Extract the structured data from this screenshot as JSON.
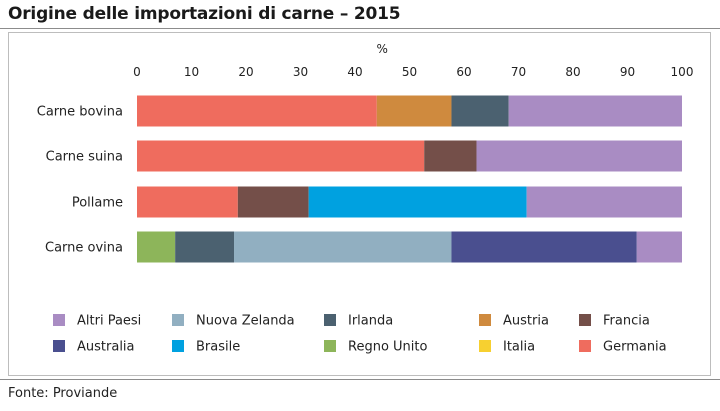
{
  "title": "Origine delle importazioni di carne – 2015",
  "source": "Fonte: Proviande",
  "chart_data": {
    "type": "bar",
    "orientation": "horizontal",
    "stacked": true,
    "unit_label": "%",
    "xlim": [
      0,
      100
    ],
    "xticks": [
      "0",
      "10",
      "20",
      "30",
      "40",
      "50",
      "60",
      "70",
      "80",
      "90",
      "100"
    ],
    "categories": [
      "Carne bovina",
      "Carne suina",
      "Pollame",
      "Carne ovina"
    ],
    "series": [
      {
        "name": "Germania",
        "color": "#ef6c5e",
        "values": [
          44,
          52.7,
          18.5,
          0
        ]
      },
      {
        "name": "Austria",
        "color": "#cf8a3e",
        "values": [
          13.7,
          0,
          0,
          0
        ]
      },
      {
        "name": "Regno Unito",
        "color": "#8db55a",
        "values": [
          0,
          0,
          0,
          7
        ]
      },
      {
        "name": "Francia",
        "color": "#744f49",
        "values": [
          0,
          9.6,
          13,
          0
        ]
      },
      {
        "name": "Irlanda",
        "color": "#4b6170",
        "values": [
          10.5,
          0,
          0,
          10.8
        ]
      },
      {
        "name": "Brasile",
        "color": "#00a1e0",
        "values": [
          0,
          0,
          40,
          0
        ]
      },
      {
        "name": "Nuova Zelanda",
        "color": "#91afc1",
        "values": [
          0,
          0,
          0,
          39.9
        ]
      },
      {
        "name": "Australia",
        "color": "#4a4f8f",
        "values": [
          0,
          0,
          0,
          34
        ]
      },
      {
        "name": "Italia",
        "color": "#f7d030",
        "values": [
          0,
          0,
          0,
          0
        ]
      },
      {
        "name": "Altri Paesi",
        "color": "#a98cc3",
        "values": [
          31.8,
          37.7,
          28.5,
          8.3
        ]
      }
    ],
    "legend": [
      "Altri Paesi",
      "Nuova Zelanda",
      "Irlanda",
      "Austria",
      "Francia",
      "Australia",
      "Brasile",
      "Regno Unito",
      "Italia",
      "Germania"
    ],
    "legend_position": "bottom",
    "grid": false
  }
}
